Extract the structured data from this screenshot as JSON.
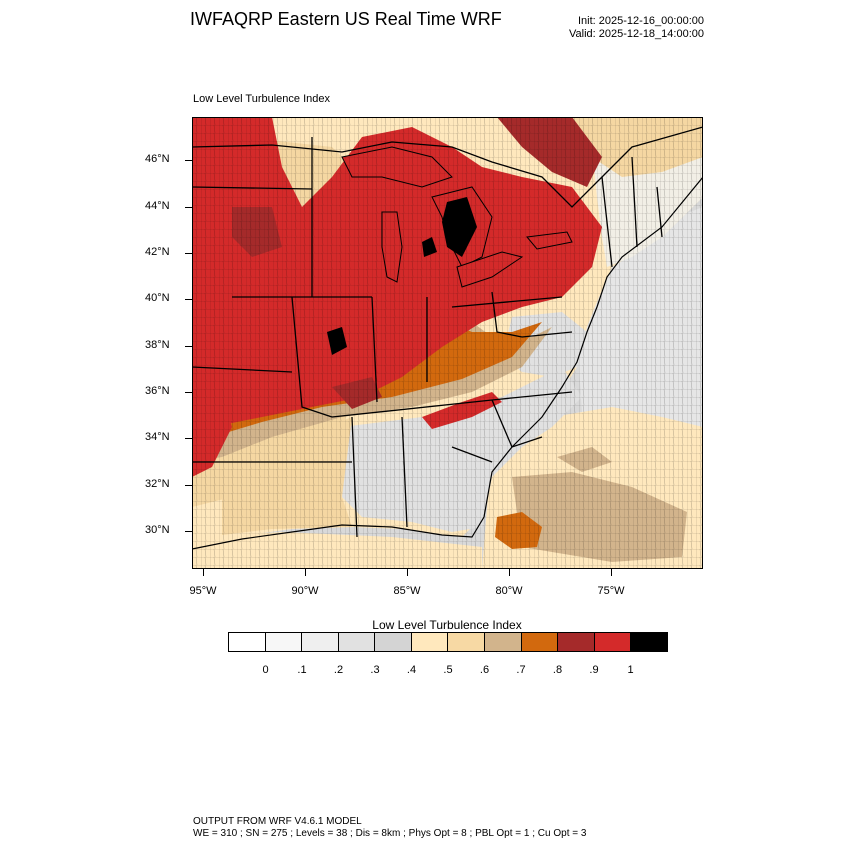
{
  "header": {
    "title": "IWFAQRP Eastern US Real Time WRF",
    "init": "Init: 2025-12-16_00:00:00",
    "valid": "Valid: 2025-12-18_14:00:00"
  },
  "plot": {
    "subtitle": "Low Level Turbulence Index",
    "lat_labels": [
      "46°N",
      "44°N",
      "42°N",
      "40°N",
      "38°N",
      "36°N",
      "34°N",
      "32°N",
      "30°N"
    ],
    "lon_labels": [
      "95°W",
      "90°W",
      "85°W",
      "80°W",
      "75°W"
    ]
  },
  "colorbar": {
    "title": "Low Level Turbulence Index",
    "labels": [
      "0",
      ".1",
      ".2",
      ".3",
      ".4",
      ".5",
      ".6",
      ".7",
      ".8",
      ".9",
      "1"
    ],
    "colors": [
      "#ffffff",
      "#f7f7f7",
      "#efefef",
      "#e1e1e1",
      "#d4d4d4",
      "#ffe8bd",
      "#f7d9a4",
      "#d2b48c",
      "#d2690e",
      "#a52a2a",
      "#d42a2a",
      "#000000"
    ]
  },
  "footer": {
    "line1": "OUTPUT FROM WRF V4.6.1 MODEL",
    "line2": "WE = 310 ; SN = 275 ; Levels = 38 ; Dis = 8km ; Phys Opt = 8 ; PBL Opt = 1 ; Cu Opt = 3"
  },
  "map": {
    "fill_colors": {
      "ocean_dark": "#d4d4d4",
      "ocean_light": "#e6e6e6",
      "cream": "#ffe8bd",
      "beige": "#f5d7a2",
      "tan": "#d2b48c",
      "orange": "#d2690e",
      "brown": "#a52a2a",
      "red": "#d42a2a",
      "black": "#000000",
      "light_gray": "#e8e8e8"
    },
    "boundary_color": "#000000"
  }
}
